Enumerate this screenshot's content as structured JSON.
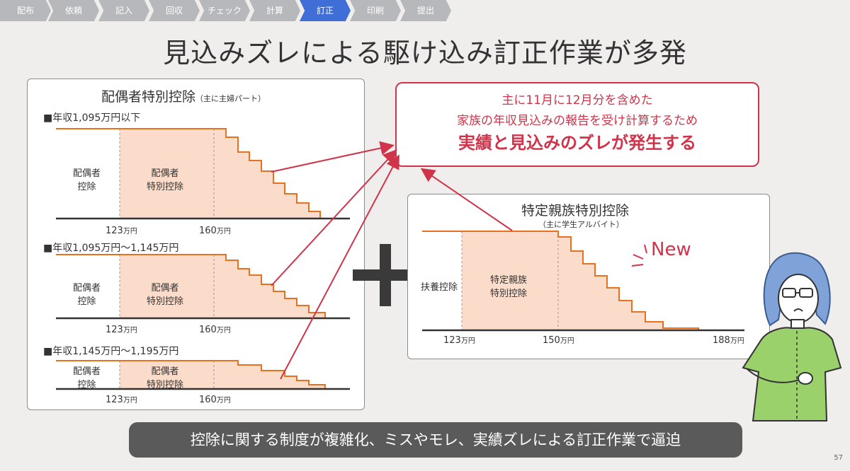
{
  "steps": [
    {
      "label": "配布",
      "active": false
    },
    {
      "label": "依頼",
      "active": false
    },
    {
      "label": "記入",
      "active": false
    },
    {
      "label": "回収",
      "active": false
    },
    {
      "label": "チェック",
      "active": false
    },
    {
      "label": "計算",
      "active": false
    },
    {
      "label": "訂正",
      "active": true
    },
    {
      "label": "印刷",
      "active": false
    },
    {
      "label": "提出",
      "active": false
    }
  ],
  "title": "見込みズレによる駆け込み訂正作業が多発",
  "left_panel": {
    "title": "配偶者特別控除",
    "title_note": "（主に主婦パート）",
    "sections": [
      {
        "heading": "■年収1,095万円以下",
        "label_a": "配偶者",
        "label_a2": "控除",
        "label_b": "配偶者",
        "label_b2": "特別控除",
        "tick1": "123",
        "tick2": "160",
        "unit": "万円"
      },
      {
        "heading": "■年収1,095万円～1,145万円",
        "label_a": "配偶者",
        "label_a2": "控除",
        "label_b": "配偶者",
        "label_b2": "特別控除",
        "tick1": "123",
        "tick2": "160",
        "unit": "万円"
      },
      {
        "heading": "■年収1,145万円～1,195万円",
        "label_a": "配偶者",
        "label_a2": "控除",
        "label_b": "配偶者",
        "label_b2": "特別控除",
        "tick1": "123",
        "tick2": "160",
        "unit": "万円"
      }
    ]
  },
  "callout": {
    "line1": "主に11月に12月分を含めた",
    "line2": "家族の年収見込みの報告を受け計算するため",
    "line3": "実績と見込みのズレが発生する"
  },
  "right_panel": {
    "title": "特定親族特別控除",
    "subtitle": "（主に学生アルバイト）",
    "label_a": "扶養控除",
    "label_b": "特定親族",
    "label_b2": "特別控除",
    "tick1": "123",
    "tick2": "150",
    "tick3": "188",
    "unit": "万円",
    "new_label": "New"
  },
  "bottom_message": "控除に関する制度が複雑化、ミスやモレ、実績ズレによる訂正作業で逼迫",
  "page_number": "57",
  "colors": {
    "accent_red": "#d0344a",
    "stair_orange": "#e8711f",
    "fill_peach": "#fbdccb",
    "step_active": "#3f6fd6",
    "step_inactive": "#b7b8bb"
  }
}
